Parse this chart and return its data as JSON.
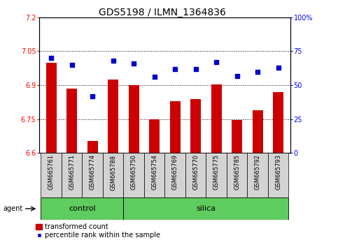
{
  "title": "GDS5198 / ILMN_1364836",
  "categories": [
    "GSM665761",
    "GSM665771",
    "GSM665774",
    "GSM665788",
    "GSM665750",
    "GSM665754",
    "GSM665769",
    "GSM665770",
    "GSM665775",
    "GSM665785",
    "GSM665792",
    "GSM665793"
  ],
  "bar_values": [
    7.0,
    6.885,
    6.655,
    6.925,
    6.9,
    6.75,
    6.83,
    6.84,
    6.905,
    6.745,
    6.79,
    6.87
  ],
  "scatter_values": [
    70,
    65,
    42,
    68,
    66,
    56,
    62,
    62,
    67,
    57,
    60,
    63
  ],
  "bar_color": "#CC0000",
  "scatter_color": "#0000CC",
  "ylim_left": [
    6.6,
    7.2
  ],
  "ylim_right": [
    0,
    100
  ],
  "yticks_left": [
    6.6,
    6.75,
    6.9,
    7.05,
    7.2
  ],
  "yticks_right": [
    0,
    25,
    50,
    75,
    100
  ],
  "ytick_labels_left": [
    "6.6",
    "6.75",
    "6.9",
    "7.05",
    "7.2"
  ],
  "ytick_labels_right": [
    "0",
    "25",
    "50",
    "75",
    "100%"
  ],
  "hlines": [
    6.75,
    6.9,
    7.05
  ],
  "n_control": 4,
  "n_silica": 8,
  "agent_label": "agent",
  "control_label": "control",
  "silica_label": "silica",
  "legend_red_label": "transformed count",
  "legend_blue_label": "percentile rank within the sample",
  "bar_width": 0.5,
  "tick_label_fontsize": 7,
  "title_fontsize": 10,
  "bg_color": "#ffffff",
  "xticklabel_bg": "#d3d3d3",
  "group_bg": "#5ECC5E"
}
